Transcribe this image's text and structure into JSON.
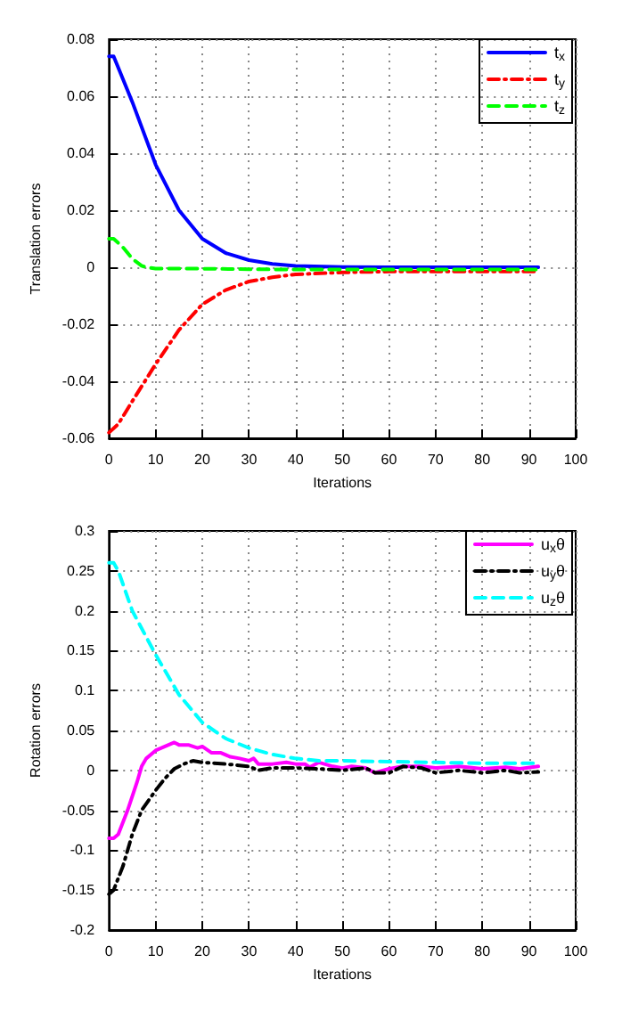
{
  "chart_data": [
    {
      "type": "line",
      "xlabel": "Iterations",
      "ylabel": "Translation errors",
      "xlim": [
        0,
        100
      ],
      "xticks": [
        0,
        10,
        20,
        30,
        40,
        50,
        60,
        70,
        80,
        90,
        100
      ],
      "ylim": [
        -0.06,
        0.08
      ],
      "yticks": [
        -0.06,
        -0.04,
        -0.02,
        0,
        0.02,
        0.04,
        0.06,
        0.08
      ],
      "grid": true,
      "legend": "top right",
      "marker": "none",
      "series": [
        {
          "name": "t$_{x}$",
          "color": "#0000ff",
          "line_style": "solid",
          "x": [
            0,
            1,
            2,
            5,
            10,
            15,
            20,
            25,
            30,
            35,
            40,
            50,
            60,
            70,
            80,
            92
          ],
          "values": [
            0.074,
            0.074,
            0.07,
            0.058,
            0.036,
            0.02,
            0.01,
            0.005,
            0.0025,
            0.0012,
            0.0005,
            0.0001,
            0,
            0,
            0,
            0
          ]
        },
        {
          "name": "t$_{y}$",
          "color": "#ff0000",
          "line_style": "dashdot",
          "x": [
            0,
            2,
            5,
            10,
            15,
            20,
            25,
            30,
            35,
            40,
            50,
            60,
            70,
            80,
            92
          ],
          "values": [
            -0.058,
            -0.055,
            -0.047,
            -0.034,
            -0.022,
            -0.013,
            -0.008,
            -0.005,
            -0.0035,
            -0.0025,
            -0.0018,
            -0.0015,
            -0.0015,
            -0.0015,
            -0.0015
          ]
        },
        {
          "name": "t$_{z}$",
          "color": "#00ff00",
          "line_style": "dashed",
          "x": [
            0,
            1,
            3,
            5,
            7,
            8,
            10,
            20,
            30,
            40,
            50,
            92
          ],
          "values": [
            0.01,
            0.01,
            0.007,
            0.003,
            0.0005,
            0,
            -0.0005,
            -0.0005,
            -0.0007,
            -0.0008,
            -0.0008,
            -0.0008
          ]
        }
      ]
    },
    {
      "type": "line",
      "xlabel": "Iterations",
      "ylabel": "Rotation errors",
      "xlim": [
        0,
        100
      ],
      "xticks": [
        0,
        10,
        20,
        30,
        40,
        50,
        60,
        70,
        80,
        90,
        100
      ],
      "ylim": [
        -0.2,
        0.3
      ],
      "yticks": [
        -0.2,
        -0.15,
        -0.1,
        -0.05,
        0,
        0.05,
        0.1,
        0.15,
        0.2,
        0.25,
        0.3
      ],
      "grid": true,
      "legend": "top right",
      "marker": "none",
      "series": [
        {
          "name": "u$_{x}$θ",
          "color": "#ff00ff",
          "line_style": "solid",
          "x": [
            0,
            1,
            2,
            4,
            6,
            7,
            8,
            10,
            12,
            14,
            15,
            17,
            19,
            20,
            22,
            24,
            26,
            28,
            30,
            31,
            32,
            35,
            38,
            40,
            42,
            43,
            45,
            48,
            50,
            52,
            55,
            57,
            60,
            63,
            67,
            70,
            75,
            80,
            85,
            88,
            92
          ],
          "values": [
            -0.085,
            -0.085,
            -0.08,
            -0.05,
            -0.015,
            0.005,
            0.015,
            0.025,
            0.03,
            0.035,
            0.032,
            0.032,
            0.028,
            0.03,
            0.022,
            0.022,
            0.017,
            0.015,
            0.012,
            0.015,
            0.008,
            0.008,
            0.01,
            0.008,
            0.008,
            0.004,
            0.01,
            0.005,
            0.003,
            0.005,
            0.003,
            -0.003,
            0.002,
            0.005,
            0.005,
            0.003,
            0.005,
            0.002,
            0.004,
            0.002,
            0.005
          ]
        },
        {
          "name": "u$_{y}$θ",
          "color": "#000000",
          "line_style": "dashdot",
          "x": [
            0,
            1,
            3,
            5,
            7,
            10,
            12,
            14,
            16,
            18,
            20,
            25,
            30,
            32,
            35,
            40,
            45,
            50,
            55,
            57,
            60,
            63,
            67,
            70,
            75,
            80,
            85,
            88,
            92
          ],
          "values": [
            -0.155,
            -0.15,
            -0.12,
            -0.08,
            -0.05,
            -0.025,
            -0.01,
            0.002,
            0.008,
            0.012,
            0.01,
            0.008,
            0.005,
            0,
            0.003,
            0.003,
            0.002,
            0,
            0.003,
            -0.003,
            -0.003,
            0.005,
            0.003,
            -0.003,
            0,
            -0.003,
            0,
            -0.003,
            -0.002
          ]
        },
        {
          "name": "u$_{z}$θ",
          "color": "#00ffff",
          "line_style": "dashed",
          "x": [
            0,
            1,
            2,
            5,
            10,
            15,
            20,
            25,
            30,
            35,
            40,
            45,
            50,
            60,
            70,
            80,
            92
          ],
          "values": [
            0.26,
            0.26,
            0.25,
            0.2,
            0.145,
            0.095,
            0.06,
            0.04,
            0.028,
            0.02,
            0.015,
            0.012,
            0.012,
            0.011,
            0.01,
            0.009,
            0.009
          ]
        }
      ]
    }
  ]
}
